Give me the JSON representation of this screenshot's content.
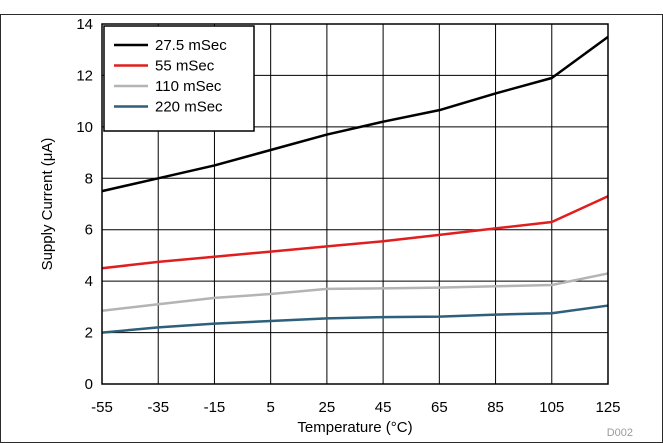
{
  "chart_data": {
    "type": "line",
    "xlabel": "Temperature (°C)",
    "ylabel": "Supply Current (μA)",
    "xlim": [
      -55,
      125
    ],
    "ylim": [
      0,
      14
    ],
    "xticks": [
      -55,
      -35,
      -15,
      5,
      25,
      45,
      65,
      85,
      105,
      125
    ],
    "yticks": [
      0,
      2,
      4,
      6,
      8,
      10,
      12,
      14
    ],
    "grid": true,
    "legend_position": "top-left",
    "series": [
      {
        "name": "27.5 mSec",
        "color": "#000000",
        "x": [
          -55,
          -35,
          -15,
          5,
          25,
          45,
          65,
          85,
          105,
          125
        ],
        "y": [
          7.5,
          8.0,
          8.5,
          9.1,
          9.7,
          10.2,
          10.65,
          11.3,
          11.9,
          13.5
        ]
      },
      {
        "name": "55 mSec",
        "color": "#e01e1e",
        "x": [
          -55,
          -35,
          -15,
          5,
          25,
          45,
          65,
          85,
          105,
          125
        ],
        "y": [
          4.5,
          4.75,
          4.95,
          5.15,
          5.35,
          5.55,
          5.8,
          6.05,
          6.3,
          7.3
        ]
      },
      {
        "name": "110 mSec",
        "color": "#b4b4b4",
        "x": [
          -55,
          -35,
          -15,
          5,
          25,
          45,
          65,
          85,
          105,
          125
        ],
        "y": [
          2.85,
          3.1,
          3.35,
          3.5,
          3.7,
          3.72,
          3.75,
          3.8,
          3.85,
          4.3
        ]
      },
      {
        "name": "220 mSec",
        "color": "#2e5f7b",
        "x": [
          -55,
          -35,
          -15,
          5,
          25,
          45,
          65,
          85,
          105,
          125
        ],
        "y": [
          2.0,
          2.2,
          2.35,
          2.45,
          2.55,
          2.6,
          2.62,
          2.7,
          2.75,
          3.05
        ]
      }
    ]
  },
  "footnote": "D002"
}
